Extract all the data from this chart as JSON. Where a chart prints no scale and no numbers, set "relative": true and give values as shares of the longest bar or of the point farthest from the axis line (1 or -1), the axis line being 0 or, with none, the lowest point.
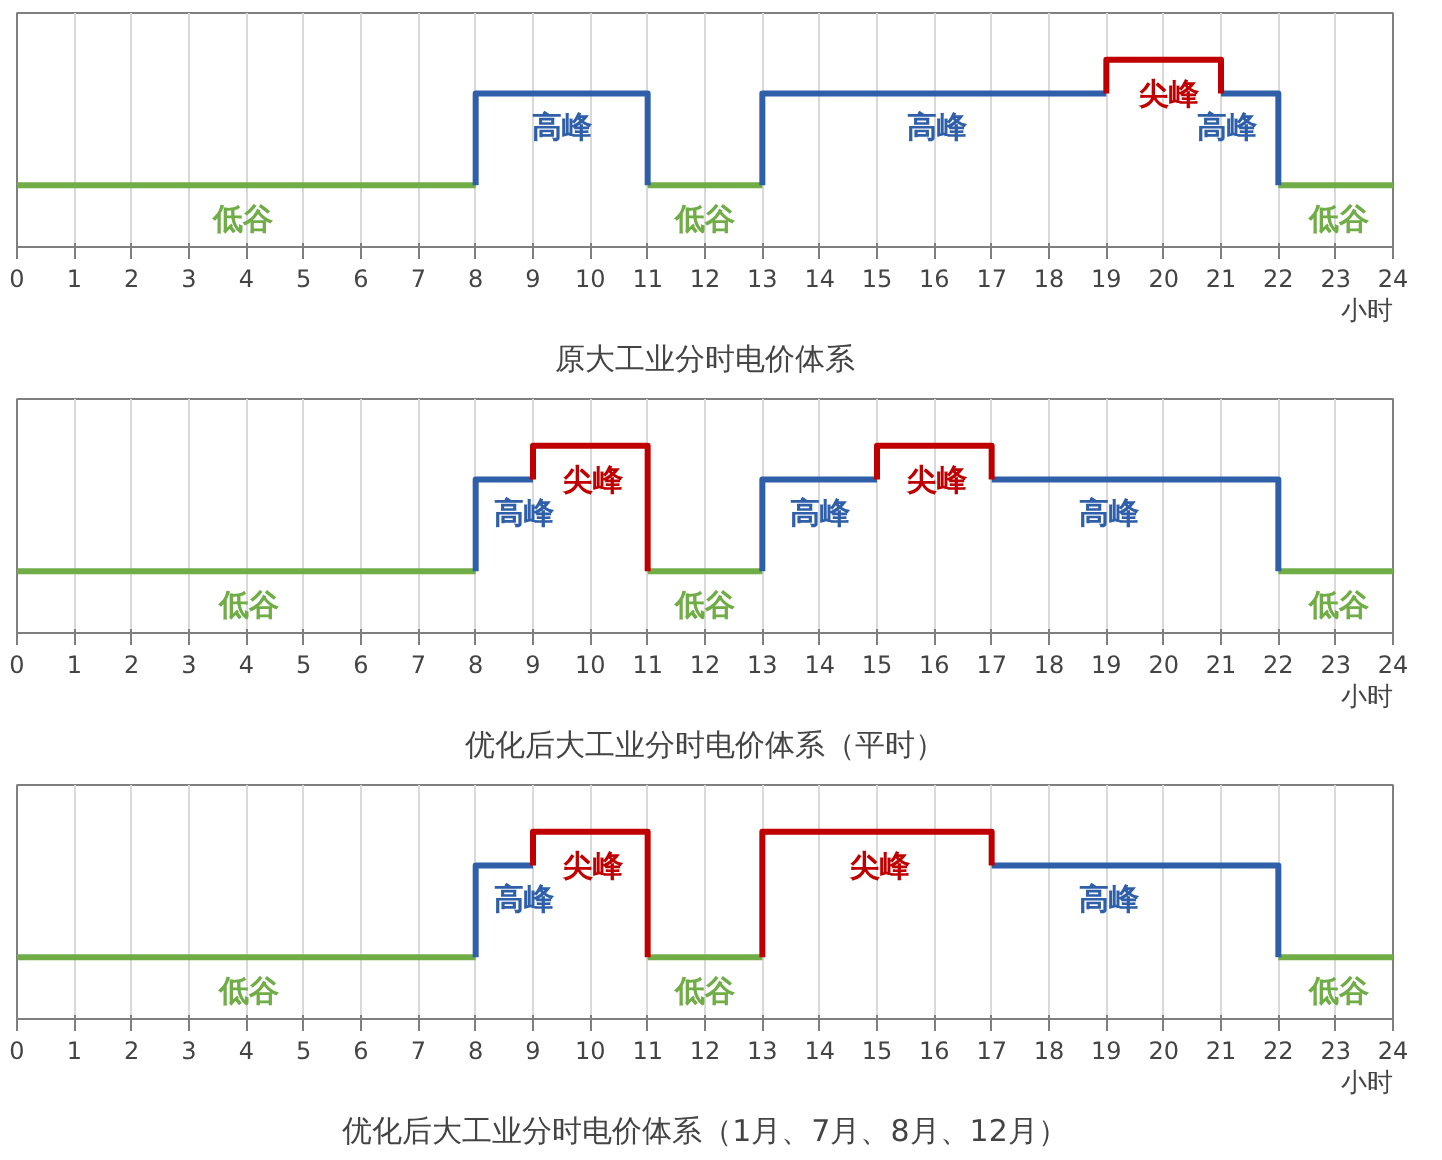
{
  "chart_data": [
    {
      "type": "line",
      "title": "原大工业分时电价体系",
      "xlabel": "小时",
      "relative": true,
      "grid": "x",
      "line_style": "solid",
      "xlim": [
        0,
        24
      ],
      "xticks": [
        0,
        1,
        2,
        3,
        4,
        5,
        6,
        7,
        8,
        9,
        10,
        11,
        12,
        13,
        14,
        15,
        16,
        17,
        18,
        19,
        20,
        21,
        22,
        23,
        24
      ],
      "series": [
        {
          "color": "#70ad47",
          "x": [
            0,
            8
          ],
          "values": [
            0.33,
            0.33
          ]
        },
        {
          "color": "#70ad47",
          "x": [
            11,
            13
          ],
          "values": [
            0.33,
            0.33
          ]
        },
        {
          "color": "#70ad47",
          "x": [
            22,
            24
          ],
          "values": [
            0.33,
            0.33
          ]
        },
        {
          "color": "#2e5fa8",
          "x": [
            8,
            8,
            11,
            11
          ],
          "values": [
            0.33,
            0.82,
            0.82,
            0.33
          ]
        },
        {
          "color": "#2e5fa8",
          "x": [
            13,
            13,
            19
          ],
          "values": [
            0.33,
            0.82,
            0.82
          ]
        },
        {
          "color": "#2e5fa8",
          "x": [
            21,
            22,
            22
          ],
          "values": [
            0.82,
            0.82,
            0.33
          ]
        },
        {
          "color": "#c00000",
          "x": [
            19,
            19,
            21,
            21
          ],
          "values": [
            0.82,
            1,
            1,
            0.82
          ]
        }
      ],
      "annotations": [
        {
          "text": "低谷",
          "x": 3.95,
          "y": 0.33
        },
        {
          "text": "高峰",
          "x": 9.5,
          "y": 0.82
        },
        {
          "text": "低谷",
          "x": 12,
          "y": 0.33
        },
        {
          "text": "高峰",
          "x": 16.05,
          "y": 0.82
        },
        {
          "text": "尖峰",
          "x": 20.1,
          "y": 1
        },
        {
          "text": "高峰",
          "x": 21.1,
          "y": 0.82
        },
        {
          "text": "低谷",
          "x": 23.05,
          "y": 0.33
        }
      ]
    },
    {
      "type": "line",
      "title": "优化后大工业分时电价体系（平时）",
      "xlabel": "小时",
      "relative": true,
      "grid": "x",
      "line_style": "solid",
      "xlim": [
        0,
        24
      ],
      "xticks": [
        0,
        1,
        2,
        3,
        4,
        5,
        6,
        7,
        8,
        9,
        10,
        11,
        12,
        13,
        14,
        15,
        16,
        17,
        18,
        19,
        20,
        21,
        22,
        23,
        24
      ],
      "series": [
        {
          "color": "#70ad47",
          "x": [
            0,
            8
          ],
          "values": [
            0.33,
            0.33
          ]
        },
        {
          "color": "#70ad47",
          "x": [
            11,
            13
          ],
          "values": [
            0.33,
            0.33
          ]
        },
        {
          "color": "#70ad47",
          "x": [
            22,
            24
          ],
          "values": [
            0.33,
            0.33
          ]
        },
        {
          "color": "#2e5fa8",
          "x": [
            8,
            8,
            9
          ],
          "values": [
            0.33,
            0.82,
            0.82
          ]
        },
        {
          "color": "#2e5fa8",
          "x": [
            13,
            13,
            15
          ],
          "values": [
            0.33,
            0.82,
            0.82
          ]
        },
        {
          "color": "#2e5fa8",
          "x": [
            17,
            22,
            22
          ],
          "values": [
            0.82,
            0.82,
            0.33
          ]
        },
        {
          "color": "#c00000",
          "x": [
            9,
            9,
            11,
            11
          ],
          "values": [
            0.82,
            1,
            1,
            0.33
          ]
        },
        {
          "color": "#c00000",
          "x": [
            15,
            15,
            17,
            17
          ],
          "values": [
            0.82,
            1,
            1,
            0.82
          ]
        }
      ],
      "annotations": [
        {
          "text": "低谷",
          "x": 4.05,
          "y": 0.33
        },
        {
          "text": "高峰",
          "x": 8.85,
          "y": 0.82
        },
        {
          "text": "尖峰",
          "x": 10.05,
          "y": 1
        },
        {
          "text": "低谷",
          "x": 12,
          "y": 0.33
        },
        {
          "text": "高峰",
          "x": 14,
          "y": 0.82
        },
        {
          "text": "尖峰",
          "x": 16.05,
          "y": 1
        },
        {
          "text": "高峰",
          "x": 19.05,
          "y": 0.82
        },
        {
          "text": "低谷",
          "x": 23.05,
          "y": 0.33
        }
      ]
    },
    {
      "type": "line",
      "title": "优化后大工业分时电价体系（1月、7月、8月、12月）",
      "xlabel": "小时",
      "relative": true,
      "grid": "x",
      "line_style": "solid",
      "xlim": [
        0,
        24
      ],
      "xticks": [
        0,
        1,
        2,
        3,
        4,
        5,
        6,
        7,
        8,
        9,
        10,
        11,
        12,
        13,
        14,
        15,
        16,
        17,
        18,
        19,
        20,
        21,
        22,
        23,
        24
      ],
      "series": [
        {
          "color": "#70ad47",
          "x": [
            0,
            8
          ],
          "values": [
            0.33,
            0.33
          ]
        },
        {
          "color": "#70ad47",
          "x": [
            11,
            13
          ],
          "values": [
            0.33,
            0.33
          ]
        },
        {
          "color": "#70ad47",
          "x": [
            22,
            24
          ],
          "values": [
            0.33,
            0.33
          ]
        },
        {
          "color": "#2e5fa8",
          "x": [
            8,
            8,
            9
          ],
          "values": [
            0.33,
            0.82,
            0.82
          ]
        },
        {
          "color": "#2e5fa8",
          "x": [
            17,
            22,
            22
          ],
          "values": [
            0.82,
            0.82,
            0.33
          ]
        },
        {
          "color": "#c00000",
          "x": [
            9,
            9,
            11,
            11
          ],
          "values": [
            0.82,
            1,
            1,
            0.33
          ]
        },
        {
          "color": "#c00000",
          "x": [
            13,
            13,
            17,
            17
          ],
          "values": [
            0.33,
            1,
            1,
            0.82
          ]
        }
      ],
      "annotations": [
        {
          "text": "低谷",
          "x": 4.05,
          "y": 0.33
        },
        {
          "text": "高峰",
          "x": 8.85,
          "y": 0.82
        },
        {
          "text": "尖峰",
          "x": 10.05,
          "y": 1
        },
        {
          "text": "低谷",
          "x": 12,
          "y": 0.33
        },
        {
          "text": "尖峰",
          "x": 15.05,
          "y": 1
        },
        {
          "text": "高峰",
          "x": 19.05,
          "y": 0.82
        },
        {
          "text": "低谷",
          "x": 23.05,
          "y": 0.33
        }
      ]
    }
  ]
}
